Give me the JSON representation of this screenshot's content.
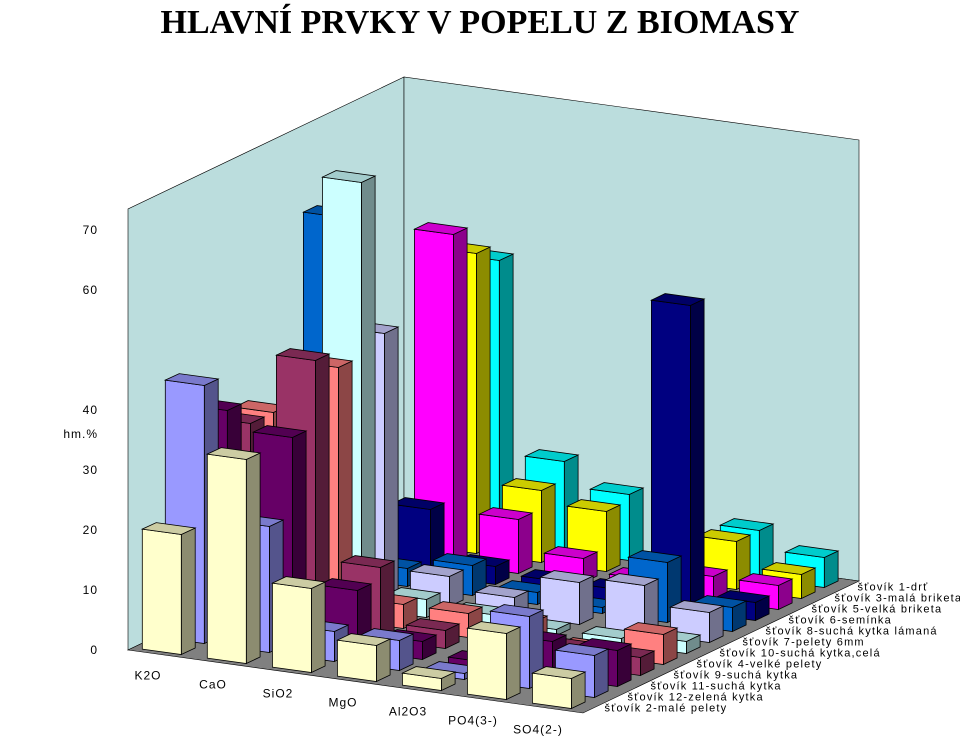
{
  "title": "HLAVNÍ PRVKY V POPELU Z BIOMASY",
  "chart_data": {
    "type": "bar",
    "subtype": "3d-clustered-depth",
    "title": "HLAVNÍ PRVKY V POPELU Z BIOMASY",
    "ylabel": "hm.%",
    "ylim": [
      0,
      70
    ],
    "yticks": [
      0,
      10,
      20,
      30,
      40,
      60,
      70
    ],
    "categories": [
      "K2O",
      "CaO",
      "SiO2",
      "MgO",
      "Al2O3",
      "PO4(3-)",
      "SO4(2-)"
    ],
    "series": [
      {
        "name": "šťovík 2-malé pelety",
        "color": "#FFFFCC",
        "values": [
          20,
          34,
          14,
          6,
          2,
          11,
          5
        ]
      },
      {
        "name": "šťovík 12-zelená kytka",
        "color": "#9999FF",
        "values": [
          43,
          21,
          5,
          5,
          1,
          12,
          7
        ]
      },
      {
        "name": "šťovík 11-suchá kytka",
        "color": "#660066",
        "values": [
          37,
          34,
          10,
          3,
          1,
          6,
          6
        ]
      },
      {
        "name": "šťovík 9-suchá kytka",
        "color": "#993366",
        "values": [
          33,
          45,
          12,
          3,
          1,
          3,
          3
        ]
      },
      {
        "name": "šťovík 4-velké pelety",
        "color": "#FF8080",
        "values": [
          33,
          42,
          4,
          4,
          4,
          1,
          5
        ]
      },
      {
        "name": "šťovík 10-suchá kytka,celá",
        "color": "#CCFFFF",
        "values": [
          1,
          71,
          3,
          2,
          1,
          1,
          2
        ]
      },
      {
        "name": "šťovík 7-pelety 6mm",
        "color": "#CCCCFF",
        "values": [
          1,
          44,
          5,
          3,
          7,
          8,
          5
        ]
      },
      {
        "name": "šťovík 8-suchá kytka lámaná",
        "color": "#0066CC",
        "values": [
          60,
          3,
          5,
          2,
          1,
          10,
          4
        ]
      },
      {
        "name": "šťovík 6-semínka",
        "color": "#000080",
        "values": [
          1,
          11,
          3,
          2,
          2,
          51,
          3
        ]
      },
      {
        "name": "šťovík 5-velká briketa",
        "color": "#FF00FF",
        "values": [
          1,
          55,
          9,
          4,
          2,
          4,
          4
        ]
      },
      {
        "name": "šťovík 3-malá briketa",
        "color": "#FFFF00",
        "values": [
          1,
          50,
          12,
          10,
          2,
          8,
          4
        ]
      },
      {
        "name": "šťovík 1-drť",
        "color": "#00FFFF",
        "values": [
          1,
          47,
          15,
          11,
          3,
          8,
          5
        ]
      }
    ],
    "wall_color": "#BBDDDD",
    "floor_color": "#808080",
    "legend": "series labels along right depth axis"
  }
}
